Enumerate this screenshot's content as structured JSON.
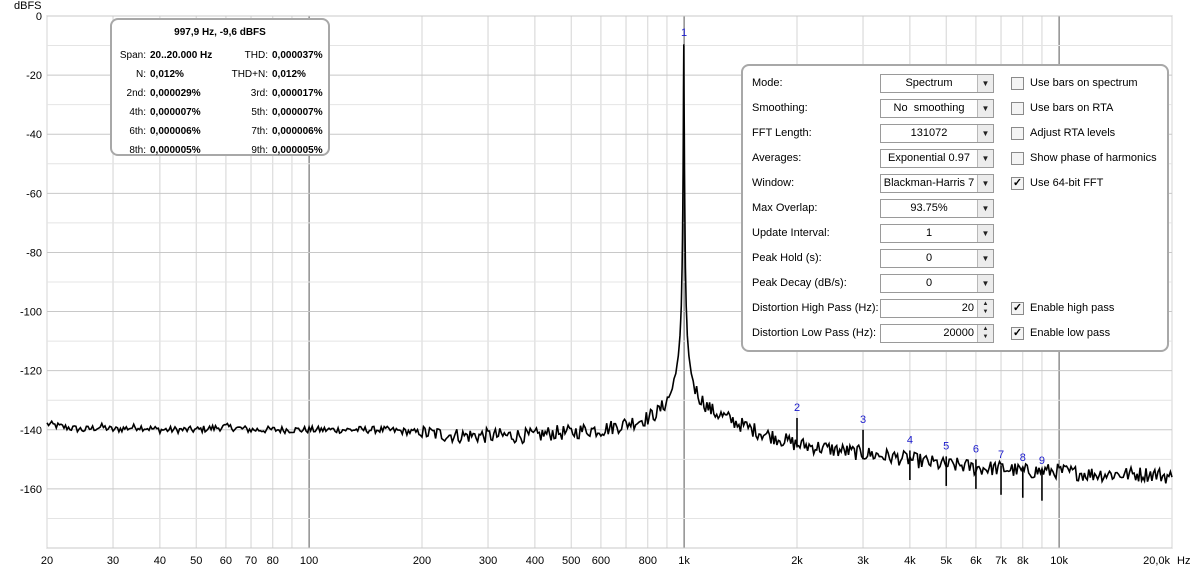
{
  "chart_data": {
    "type": "line",
    "xscale": "log",
    "xlim": [
      20,
      20000
    ],
    "ylim": [
      -180,
      0
    ],
    "ylabel": "dBFS",
    "xlabel": "Hz",
    "grid": true,
    "y_ticks": [
      "0",
      "-20",
      "-40",
      "-60",
      "-80",
      "-100",
      "-120",
      "-140",
      "-160"
    ],
    "y_tick_values": [
      0,
      -20,
      -40,
      -60,
      -80,
      -100,
      -120,
      -140,
      -160
    ],
    "x_ticks": [
      {
        "v": 20,
        "t": "20"
      },
      {
        "v": 30,
        "t": "30"
      },
      {
        "v": 40,
        "t": "40"
      },
      {
        "v": 50,
        "t": "50"
      },
      {
        "v": 60,
        "t": "60"
      },
      {
        "v": 70,
        "t": "70"
      },
      {
        "v": 80,
        "t": "80"
      },
      {
        "v": 100,
        "t": "100"
      },
      {
        "v": 200,
        "t": "200"
      },
      {
        "v": 300,
        "t": "300"
      },
      {
        "v": 400,
        "t": "400"
      },
      {
        "v": 500,
        "t": "500"
      },
      {
        "v": 600,
        "t": "600"
      },
      {
        "v": 800,
        "t": "800"
      },
      {
        "v": 1000,
        "t": "1k"
      },
      {
        "v": 2000,
        "t": "2k"
      },
      {
        "v": 3000,
        "t": "3k"
      },
      {
        "v": 4000,
        "t": "4k"
      },
      {
        "v": 5000,
        "t": "5k"
      },
      {
        "v": 6000,
        "t": "6k"
      },
      {
        "v": 7000,
        "t": "7k"
      },
      {
        "v": 8000,
        "t": "8k"
      },
      {
        "v": 10000,
        "t": "10k"
      },
      {
        "v": 20000,
        "t": "20,0k"
      }
    ],
    "series": [
      {
        "color": "#000000",
        "x": [
          20,
          22,
          25,
          28,
          30,
          35,
          40,
          50,
          60,
          70,
          80,
          100,
          130,
          160,
          200,
          250,
          300,
          350,
          400,
          450,
          500,
          550,
          600,
          650,
          700,
          750,
          800,
          850,
          880,
          910,
          930,
          950,
          965,
          975,
          983,
          988,
          992,
          995,
          997.9,
          1001,
          1004,
          1008,
          1013,
          1020,
          1030,
          1045,
          1070,
          1100,
          1150,
          1200,
          1300,
          1400,
          1600,
          1800,
          2000,
          2300,
          2600,
          3000,
          3500,
          4000,
          4500,
          5000,
          5500,
          6000,
          7000,
          8000,
          9000,
          10000,
          12000,
          14000,
          16000,
          18000,
          20000
        ],
        "y": [
          -138,
          -139,
          -140,
          -139,
          -140,
          -139,
          -140,
          -140,
          -139,
          -140,
          -140,
          -140,
          -140,
          -140,
          -141,
          -142,
          -142,
          -142,
          -142,
          -141,
          -141,
          -140,
          -140,
          -139,
          -138,
          -137,
          -136,
          -134,
          -132,
          -129,
          -126,
          -121,
          -115,
          -108,
          -98,
          -85,
          -65,
          -40,
          -9.6,
          -40,
          -65,
          -85,
          -98,
          -108,
          -115,
          -121,
          -126,
          -129,
          -132,
          -134,
          -136,
          -138,
          -141,
          -143,
          -145,
          -146,
          -147,
          -148,
          -149,
          -150,
          -151,
          -152,
          -152,
          -153,
          -153,
          -154,
          -154,
          -154,
          -155,
          -155,
          -155,
          -155,
          -156
        ]
      }
    ],
    "harmonics": [
      {
        "label": "1",
        "f": 1000,
        "level": -9.6
      },
      {
        "label": "2",
        "f": 2000,
        "level": -136
      },
      {
        "label": "3",
        "f": 3000,
        "level": -140
      },
      {
        "label": "4",
        "f": 4000,
        "level": -147
      },
      {
        "label": "5",
        "f": 5000,
        "level": -149
      },
      {
        "label": "6",
        "f": 6000,
        "level": -150
      },
      {
        "label": "7",
        "f": 7000,
        "level": -152
      },
      {
        "label": "8",
        "f": 8000,
        "level": -153
      },
      {
        "label": "9",
        "f": 9000,
        "level": -154
      }
    ]
  },
  "info": {
    "title": "997,9 Hz, -9,6 dBFS",
    "rows": [
      {
        "k": "Span:",
        "v": "20..20.000 Hz",
        "k2": "THD:",
        "v2": "0,000037%"
      },
      {
        "k": "N:",
        "v": "0,012%",
        "k2": "THD+N:",
        "v2": "0,012%"
      },
      {
        "k": "2nd:",
        "v": "0,000029%",
        "k2": "3rd:",
        "v2": "0,000017%"
      },
      {
        "k": "4th:",
        "v": "0,000007%",
        "k2": "5th:",
        "v2": "0,000007%"
      },
      {
        "k": "6th:",
        "v": "0,000006%",
        "k2": "7th:",
        "v2": "0,000006%"
      },
      {
        "k": "8th:",
        "v": "0,000005%",
        "k2": "9th:",
        "v2": "0,000005%"
      }
    ]
  },
  "controls": {
    "mode_label": "Mode:",
    "mode_value": "Spectrum",
    "smoothing_label": "Smoothing:",
    "smoothing_value": "No  smoothing",
    "fft_label": "FFT Length:",
    "fft_value": "131072",
    "averages_label": "Averages:",
    "averages_value": "Exponential 0.97",
    "window_label": "Window:",
    "window_value": "Blackman-Harris 7",
    "overlap_label": "Max Overlap:",
    "overlap_value": "93.75%",
    "update_label": "Update Interval:",
    "update_value": "1",
    "peakhold_label": "Peak Hold (s):",
    "peakhold_value": "0",
    "peakdecay_label": "Peak Decay (dB/s):",
    "peakdecay_value": "0",
    "dhp_label": "Distortion High Pass (Hz):",
    "dhp_value": "20",
    "dlp_label": "Distortion Low Pass (Hz):",
    "dlp_value": "20000",
    "chk_bars_spectrum": "Use bars on spectrum",
    "chk_bars_rta": "Use bars on RTA",
    "chk_adjust_rta": "Adjust RTA levels",
    "chk_phase": "Show phase of harmonics",
    "chk_64bit": "Use 64-bit FFT",
    "chk_highpass": "Enable high pass",
    "chk_lowpass": "Enable low pass",
    "check_mark": "✓"
  }
}
